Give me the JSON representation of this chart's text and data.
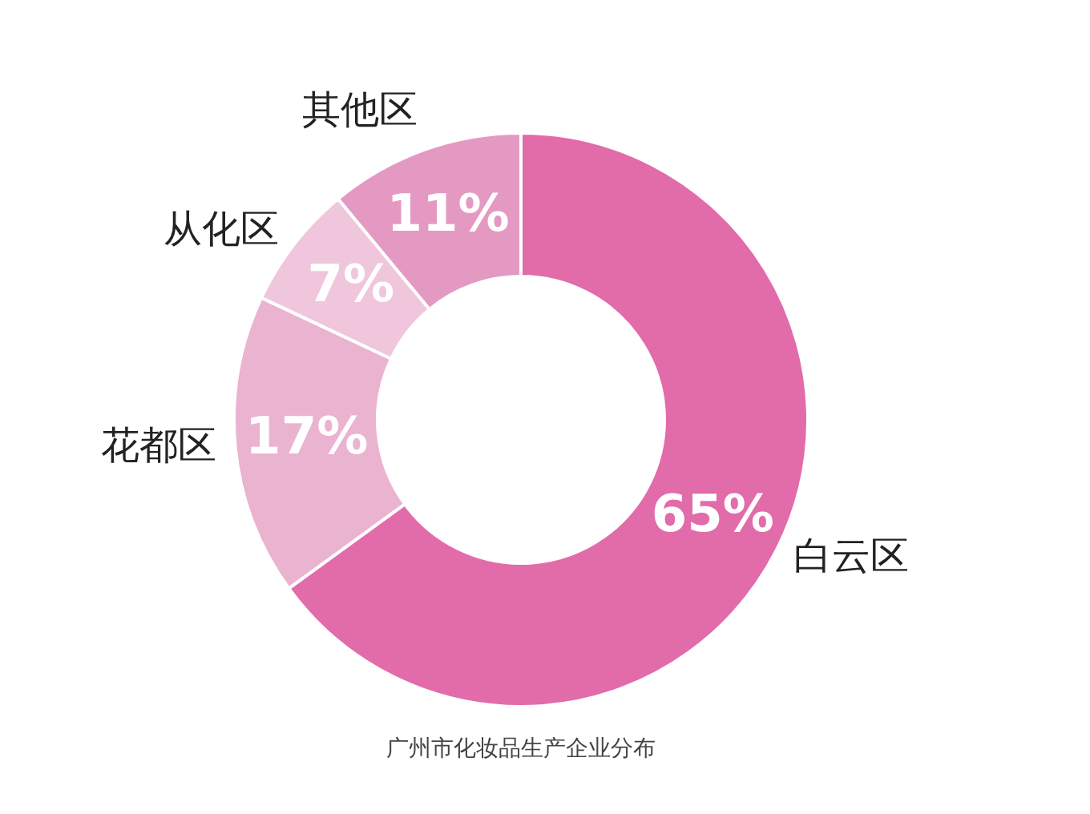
{
  "chart_data": {
    "type": "donut",
    "categories": [
      "白云区",
      "花都区",
      "从化区",
      "其他区"
    ],
    "values": [
      65,
      17,
      7,
      11
    ],
    "value_labels": [
      "65%",
      "17%",
      "7%",
      "11%"
    ],
    "colors": [
      "#e26ba9",
      "#eab3d0",
      "#f0c6dc",
      "#e499c2"
    ],
    "legend": false,
    "annotations": [
      "广州市化妆品生产企业分布"
    ]
  }
}
